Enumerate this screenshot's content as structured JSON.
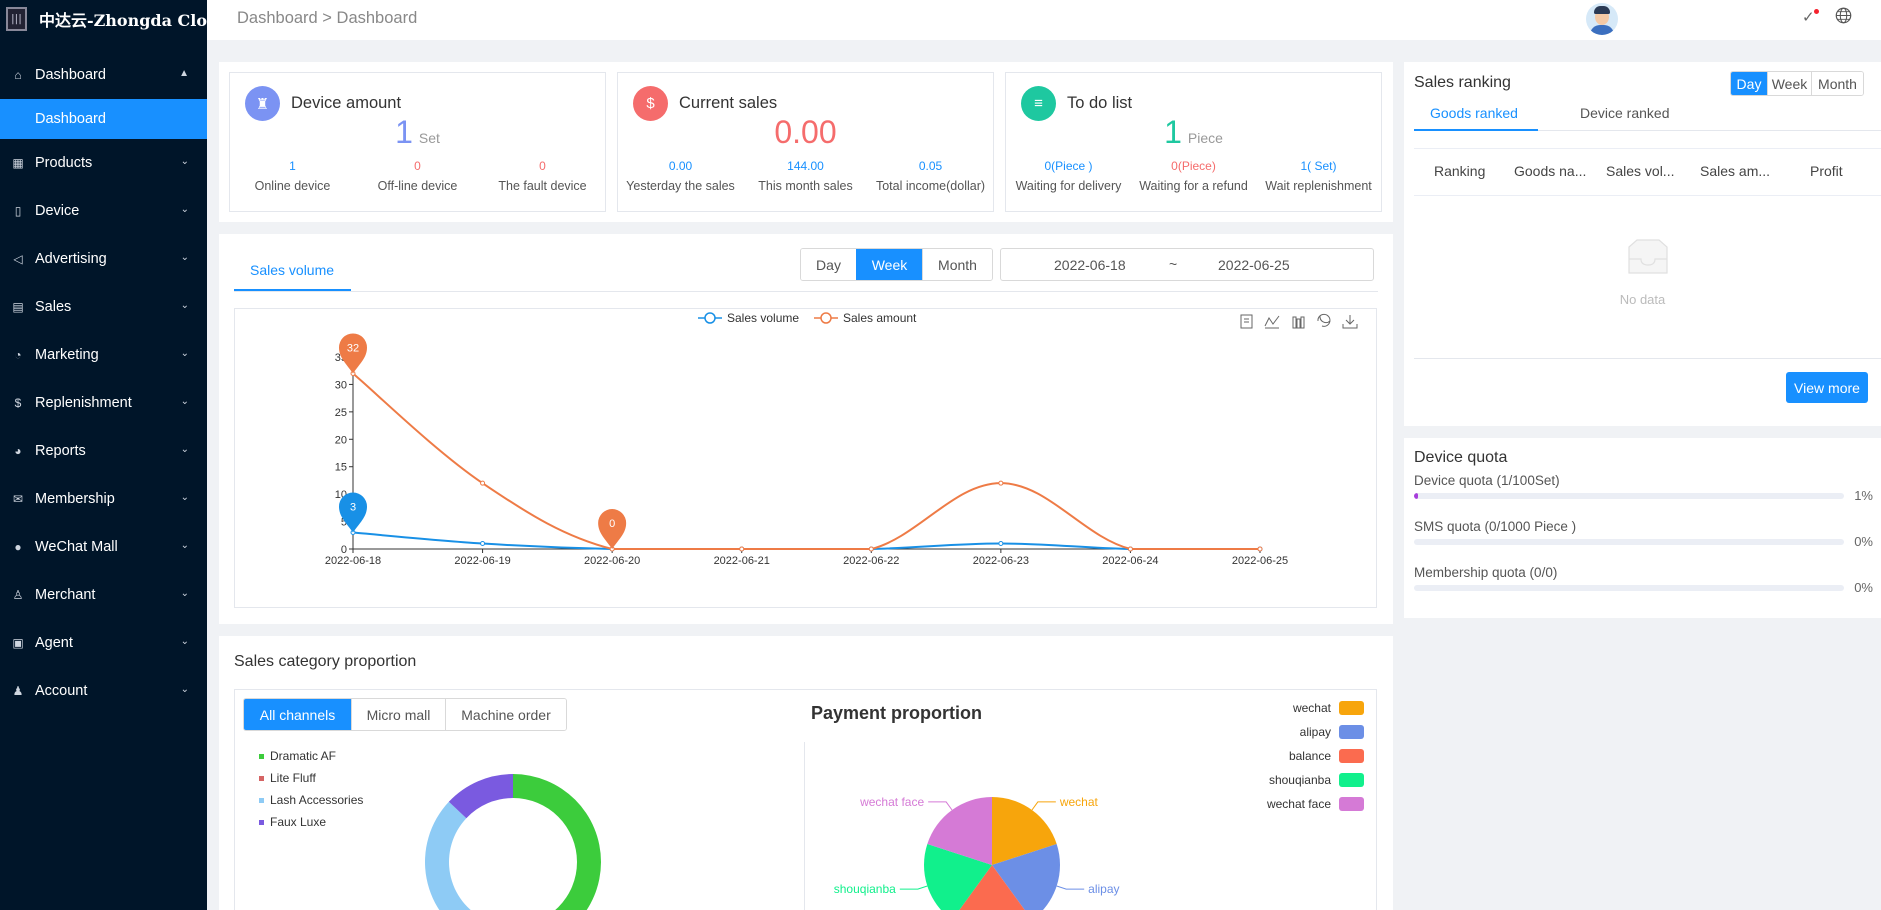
{
  "app": {
    "logo_text": "中达云-Zhongda Clo"
  },
  "sidebar": {
    "items": [
      {
        "label": "Dashboard",
        "icon": "home-icon",
        "expanded": true,
        "sub": "Dashboard"
      },
      {
        "label": "Products",
        "icon": "grid-icon"
      },
      {
        "label": "Device",
        "icon": "device-icon"
      },
      {
        "label": "Advertising",
        "icon": "megaphone-icon"
      },
      {
        "label": "Sales",
        "icon": "document-icon"
      },
      {
        "label": "Marketing",
        "icon": "cup-icon"
      },
      {
        "label": "Replenishment",
        "icon": "dollar-icon"
      },
      {
        "label": "Reports",
        "icon": "pie-icon"
      },
      {
        "label": "Membership",
        "icon": "mail-icon"
      },
      {
        "label": "WeChat Mall",
        "icon": "wechat-icon"
      },
      {
        "label": "Merchant",
        "icon": "merchant-icon"
      },
      {
        "label": "Agent",
        "icon": "agent-icon"
      },
      {
        "label": "Account",
        "icon": "user-icon"
      }
    ]
  },
  "header": {
    "breadcrumb": "Dashboard > Dashboard"
  },
  "cards": [
    {
      "title": "Device amount",
      "value": "1",
      "unit": "Set",
      "color": "#7b93f3",
      "stats": [
        {
          "v": "1",
          "l": "Online device",
          "c": "#1890ff"
        },
        {
          "v": "0",
          "l": "Off-line device",
          "c": "#f56c6c"
        },
        {
          "v": "0",
          "l": "The fault device",
          "c": "#f56c6c"
        }
      ]
    },
    {
      "title": "Current sales",
      "value": "0.00",
      "unit": "",
      "color": "#f56c6c",
      "stats": [
        {
          "v": "0.00",
          "l": "Yesterday the sales",
          "c": "#1890ff"
        },
        {
          "v": "144.00",
          "l": "This month sales",
          "c": "#1890ff"
        },
        {
          "v": "0.05",
          "l": "Total income(dollar)",
          "c": "#1890ff"
        }
      ]
    },
    {
      "title": "To do list",
      "value": "1",
      "unit": "Piece",
      "color": "#1ec8a0",
      "stats": [
        {
          "v": "0(Piece )",
          "l": "Waiting for delivery",
          "c": "#1890ff"
        },
        {
          "v": "0(Piece)",
          "l": "Waiting for a refund",
          "c": "#f56c6c"
        },
        {
          "v": "1( Set)",
          "l": "Wait replenishment",
          "c": "#1890ff"
        }
      ]
    }
  ],
  "sales_chart_panel": {
    "tab": "Sales volume",
    "range_buttons": [
      "Day",
      "Week",
      "Month"
    ],
    "active_range": "Week",
    "date_start": "2022-06-18",
    "date_sep": "~",
    "date_end": "2022-06-25"
  },
  "chart_data": {
    "type": "line",
    "x": [
      "2022-06-18",
      "2022-06-19",
      "2022-06-20",
      "2022-06-21",
      "2022-06-22",
      "2022-06-23",
      "2022-06-24",
      "2022-06-25"
    ],
    "series": [
      {
        "name": "Sales volume",
        "values": [
          3,
          1,
          0,
          0,
          0,
          1,
          0,
          0
        ],
        "color": "#1890e6",
        "marker_label": "3"
      },
      {
        "name": "Sales amount",
        "values": [
          32,
          12,
          0,
          0,
          0,
          12,
          0,
          0
        ],
        "color": "#ee7b46",
        "marker_labels": [
          "32",
          "0"
        ]
      }
    ],
    "yticks": [
      0,
      5,
      10,
      15,
      20,
      25,
      30,
      35
    ],
    "ylim": [
      0,
      35
    ],
    "legend": "top-center",
    "grid": false
  },
  "ranking": {
    "title": "Sales ranking",
    "buttons": [
      "Day",
      "Week",
      "Month"
    ],
    "active": "Day",
    "tabs": [
      "Goods ranked",
      "Device ranked"
    ],
    "columns": [
      "Ranking",
      "Goods na...",
      "Sales vol...",
      "Sales am...",
      "Profit"
    ],
    "empty_text": "No data",
    "view_more": "View more"
  },
  "quota": {
    "title": "Device quota",
    "items": [
      {
        "label": "Device quota (1/100Set)",
        "pct": "1%",
        "fill": 1
      },
      {
        "label": "SMS quota (0/1000 Piece )",
        "pct": "0%",
        "fill": 0
      },
      {
        "label": "Membership quota (0/0)",
        "pct": "0%",
        "fill": 0
      }
    ]
  },
  "category": {
    "title": "Sales category proportion",
    "channels": [
      "All channels",
      "Micro mall",
      "Machine order"
    ],
    "active": "All channels",
    "legend": [
      {
        "name": "Dramatic AF",
        "color": "#3ccc3c",
        "share": 0.5
      },
      {
        "name": "Lite Fluff",
        "color": "#d56464",
        "share": 0.07
      },
      {
        "name": "Lash Accessories",
        "color": "#8ecbf5",
        "share": 0.3
      },
      {
        "name": "Faux Luxe",
        "color": "#7a5ae0",
        "share": 0.13
      }
    ]
  },
  "payment": {
    "title": "Payment proportion",
    "legend": [
      {
        "name": "wechat",
        "color": "#f7a50c",
        "share": 0.2
      },
      {
        "name": "alipay",
        "color": "#6c8fe6",
        "share": 0.2
      },
      {
        "name": "balance",
        "color": "#fb6b4f",
        "share": 0.2
      },
      {
        "name": "shouqianba",
        "color": "#11f08c",
        "share": 0.2
      },
      {
        "name": "wechat face",
        "color": "#d57ad6",
        "share": 0.2
      }
    ]
  }
}
